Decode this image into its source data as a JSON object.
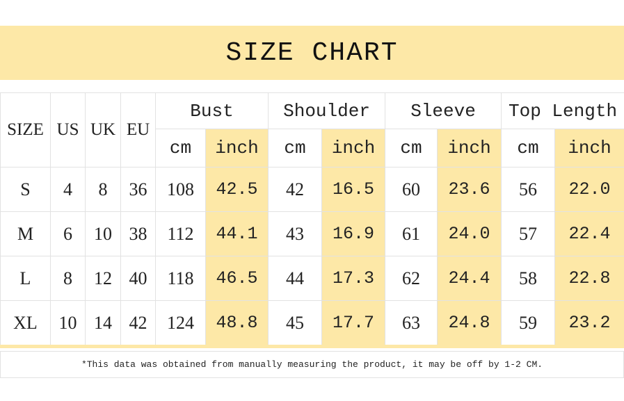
{
  "title": "SIZE CHART",
  "table": {
    "header": [
      "SIZE",
      "US",
      "UK",
      "EU"
    ],
    "groups": [
      "Bust",
      "Shoulder",
      "Sleeve",
      "Top Length"
    ],
    "subheaders": [
      "cm",
      "inch",
      "cm",
      "inch",
      "cm",
      "inch",
      "cm",
      "inch"
    ],
    "rows": [
      [
        "S",
        "4",
        "8",
        "36",
        "108",
        "42.5",
        "42",
        "16.5",
        "60",
        "23.6",
        "56",
        "22.0"
      ],
      [
        "M",
        "6",
        "10",
        "38",
        "112",
        "44.1",
        "43",
        "16.9",
        "61",
        "24.0",
        "57",
        "22.4"
      ],
      [
        "L",
        "8",
        "12",
        "40",
        "118",
        "46.5",
        "44",
        "17.3",
        "62",
        "24.4",
        "58",
        "22.8"
      ],
      [
        "XL",
        "10",
        "14",
        "42",
        "124",
        "48.8",
        "45",
        "17.7",
        "63",
        "24.8",
        "59",
        "23.2"
      ]
    ]
  },
  "footnote": "*This data was obtained from manually measuring the product, it may be off by 1-2 CM."
}
